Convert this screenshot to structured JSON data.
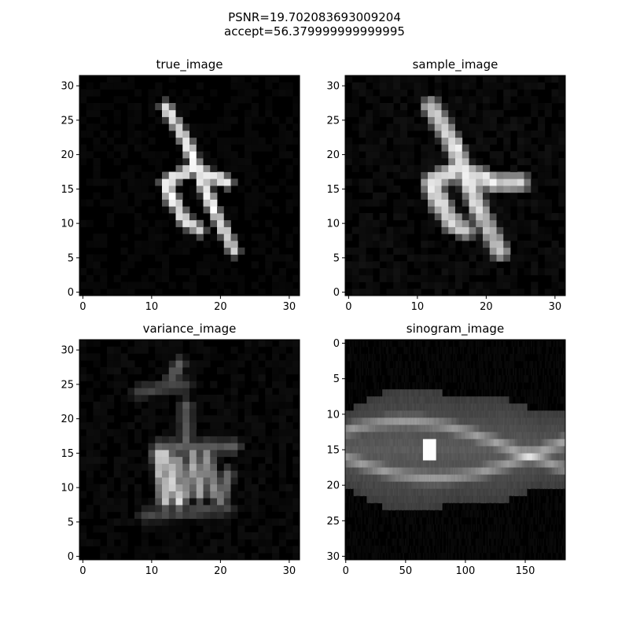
{
  "suptitle_lines": [
    "PSNR=19.702083693009204",
    "accept=56.379999999999995"
  ],
  "colors": {
    "background": "#ffffff",
    "axes_frame": "#000000",
    "colormap": "gray"
  },
  "chart_data": [
    {
      "type": "heatmap",
      "title": "true_image",
      "colormap": "gray",
      "grid": false,
      "extent": [
        -0.5,
        31.5,
        31.5,
        -0.5
      ],
      "xticks": [
        0,
        10,
        20,
        30
      ],
      "yticks": [
        0,
        5,
        10,
        15,
        20,
        25,
        30
      ],
      "xtick_labels": [
        "0",
        "10",
        "20",
        "30"
      ],
      "ytick_labels": [
        "0",
        "5",
        "10",
        "15",
        "20",
        "25",
        "30"
      ],
      "content": "handwritten digit 4, bright white strokes on black"
    },
    {
      "type": "heatmap",
      "title": "sample_image",
      "colormap": "gray",
      "grid": false,
      "extent": [
        -0.5,
        31.5,
        31.5,
        -0.5
      ],
      "xticks": [
        0,
        10,
        20,
        30
      ],
      "yticks": [
        0,
        5,
        10,
        15,
        20,
        25,
        30
      ],
      "xtick_labels": [
        "0",
        "10",
        "20",
        "30"
      ],
      "ytick_labels": [
        "0",
        "5",
        "10",
        "15",
        "20",
        "25",
        "30"
      ],
      "content": "reconstructed digit 4, slightly blurred"
    },
    {
      "type": "heatmap",
      "title": "variance_image",
      "colormap": "gray",
      "grid": false,
      "extent": [
        -0.5,
        31.5,
        31.5,
        -0.5
      ],
      "xticks": [
        0,
        10,
        20,
        30
      ],
      "yticks": [
        0,
        5,
        10,
        15,
        20,
        25,
        30
      ],
      "xtick_labels": [
        "0",
        "10",
        "20",
        "30"
      ],
      "ytick_labels": [
        "0",
        "5",
        "10",
        "15",
        "20",
        "25",
        "30"
      ],
      "content": "posterior variance concentrated around the digit strokes"
    },
    {
      "type": "heatmap",
      "title": "sinogram_image",
      "colormap": "gray",
      "grid": false,
      "extent": [
        -0.5,
        183.5,
        -0.5,
        30.5
      ],
      "xticks": [
        0,
        50,
        100,
        150
      ],
      "yticks": [
        0,
        5,
        10,
        15,
        20,
        25,
        30
      ],
      "xtick_labels": [
        "0",
        "50",
        "100",
        "150"
      ],
      "ytick_labels": [
        "0",
        "5",
        "10",
        "15",
        "20",
        "25",
        "30"
      ],
      "content": "sinogram band centered near detector 15 with crossing sinusoids"
    }
  ]
}
